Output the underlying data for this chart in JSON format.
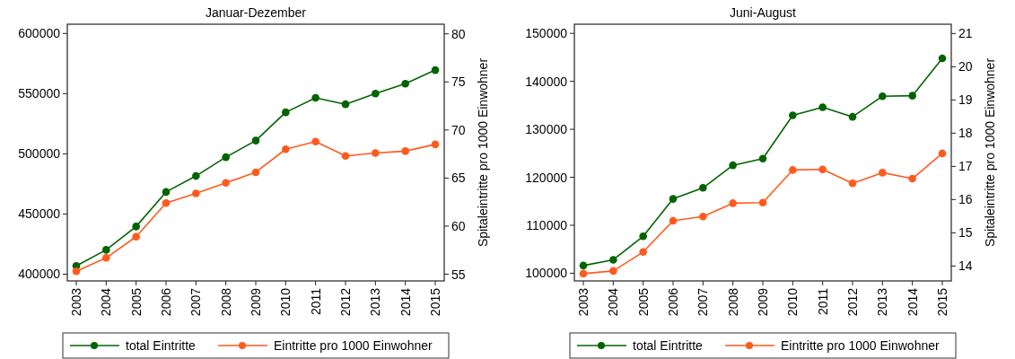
{
  "chart_data": [
    {
      "type": "line",
      "title": "Januar-Dezember",
      "y2label": "Spitaleintritte pro 1000 Einwohner",
      "categories": [
        "2003",
        "2004",
        "2005",
        "2006",
        "2007",
        "2008",
        "2009",
        "2010",
        "2011",
        "2012",
        "2013",
        "2014",
        "2015"
      ],
      "series": [
        {
          "name": "total Eintritte",
          "color": "#006400",
          "values": [
            406900,
            420200,
            439600,
            468300,
            481600,
            497200,
            511000,
            534500,
            546500,
            541200,
            550100,
            558300,
            569600
          ]
        },
        {
          "name": "Eintritte pro 1000 Einwohner",
          "color": "#ff5a1e",
          "axis": "y2",
          "values": [
            55.3,
            56.7,
            58.9,
            62.4,
            63.4,
            64.5,
            65.6,
            68.0,
            68.8,
            67.3,
            67.6,
            67.8,
            68.5
          ]
        }
      ],
      "ylim": [
        394400,
        607700
      ],
      "yticks": [
        400000,
        450000,
        500000,
        550000,
        600000
      ],
      "y2lim": [
        54.3,
        81
      ],
      "y2ticks": [
        55,
        60,
        65,
        70,
        75,
        80
      ],
      "marker": "circle",
      "grid": false,
      "legend": "bottom"
    },
    {
      "type": "line",
      "title": "Juni-August",
      "y2label": "Spitaleintritte pro 1000 Einwohner",
      "categories": [
        "2003",
        "2004",
        "2005",
        "2006",
        "2007",
        "2008",
        "2009",
        "2010",
        "2011",
        "2012",
        "2013",
        "2014",
        "2015"
      ],
      "series": [
        {
          "name": "total Eintritte",
          "color": "#006400",
          "values": [
            101600,
            102800,
            107700,
            115500,
            117800,
            122500,
            123900,
            132900,
            134600,
            132600,
            136900,
            137000,
            144800
          ]
        },
        {
          "name": "Eintritte pro 1000 Einwohner",
          "color": "#ff5a1e",
          "axis": "y2",
          "values": [
            13.77,
            13.85,
            14.42,
            15.36,
            15.49,
            15.89,
            15.91,
            16.89,
            16.91,
            16.49,
            16.81,
            16.63,
            17.39
          ]
        }
      ],
      "ylim": [
        98400,
        151900
      ],
      "yticks": [
        100000,
        110000,
        120000,
        130000,
        140000,
        150000
      ],
      "y2lim": [
        13.55,
        21.28
      ],
      "y2ticks": [
        14,
        15,
        16,
        17,
        18,
        19,
        20,
        21
      ],
      "marker": "circle",
      "grid": false,
      "legend": "bottom"
    }
  ]
}
